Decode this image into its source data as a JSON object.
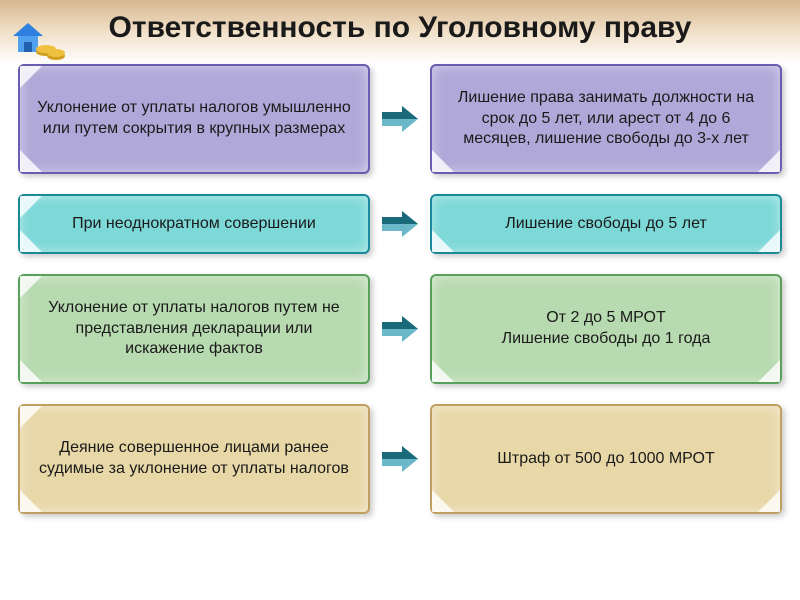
{
  "title": "Ответственность по Уголовному праву",
  "colors": {
    "purple_border": "#6b5cb0",
    "purple_fill": "#b0a8d8",
    "teal_border": "#1a8a9a",
    "teal_fill": "#7dd8d8",
    "green_border": "#5aa05a",
    "green_fill": "#b8dab0",
    "tan_border": "#c0a060",
    "tan_fill": "#e8d8a8",
    "arrow_dark": "#1a6a7a",
    "arrow_light": "#6ab8c8"
  },
  "rows": [
    {
      "left": "Уклонение от уплаты налогов умышленно  или путем сокрытия в крупных размерах",
      "right": "Лишение права занимать должности на срок до 5 лет, или арест от 4 до 6 месяцев, лишение свободы до 3-х лет",
      "color": "purple",
      "tall": true
    },
    {
      "left": "При неоднократном совершении",
      "right": "Лишение свободы до 5 лет",
      "color": "teal",
      "tall": false
    },
    {
      "left": "Уклонение от уплаты налогов путем не представления декларации или искажение фактов",
      "right": "От 2 до 5 МРОТ\nЛишение свободы до 1 года",
      "color": "green",
      "tall": true
    },
    {
      "left": "Деяние совершенное лицами ранее судимые за уклонение от уплаты налогов",
      "right": "Штраф от 500 до 1000 МРОТ",
      "color": "tan",
      "tall": true
    }
  ]
}
